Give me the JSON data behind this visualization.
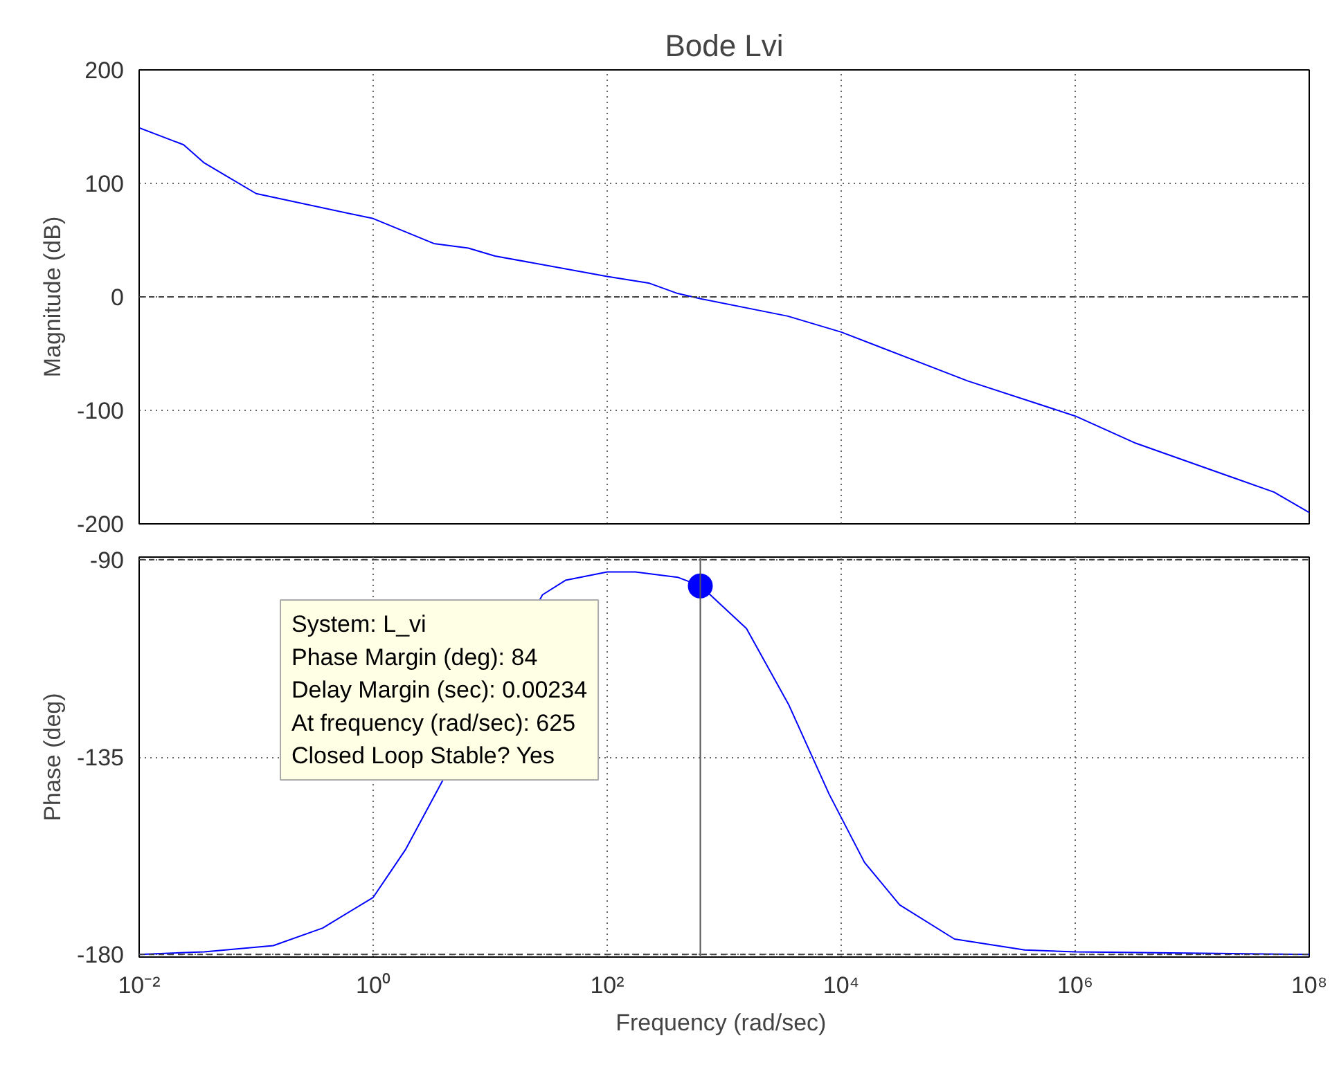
{
  "chart_data": [
    {
      "type": "line",
      "title": "Bode Lvi",
      "ylabel": "Magnitude (dB)",
      "log": "x",
      "grid": true,
      "tick_labels": "y",
      "xlim": [
        0.01,
        100000000
      ],
      "xticks": [
        {
          "value": 0.01,
          "label": null
        },
        {
          "value": 1,
          "label": null
        },
        {
          "value": 100,
          "label": null
        },
        {
          "value": 10000,
          "label": null
        },
        {
          "value": 1000000,
          "label": null
        },
        {
          "value": 100000000,
          "label": null
        }
      ],
      "ylim": [
        -200,
        200
      ],
      "yticks": [
        -200,
        -100,
        0,
        100,
        200
      ],
      "ref_lines": [
        {
          "axis": "y",
          "value": 0,
          "label": null,
          "line_style": "dashed",
          "color": "#404040"
        }
      ],
      "series": [
        {
          "color": "#0000ff",
          "x": [
            0.01,
            0.024,
            0.036,
            0.1,
            1,
            3.3,
            6.5,
            11,
            100,
            230,
            400,
            650,
            3500,
            10000,
            120000,
            1000000,
            3300000,
            50000000,
            100000000
          ],
          "values": [
            149,
            134,
            118,
            91,
            69,
            47,
            43,
            36,
            18,
            12,
            3,
            -2,
            -17,
            -31,
            -74,
            -105,
            -129,
            -172,
            -190
          ]
        }
      ]
    },
    {
      "type": "line",
      "xlabel": "Frequency  (rad/sec)",
      "ylabel": "Phase (deg)",
      "log": "x",
      "grid": true,
      "xlim": [
        0.01,
        100000000
      ],
      "xticks": [
        {
          "value": 0.01,
          "label": "10⁻²"
        },
        {
          "value": 1,
          "label": "10⁰"
        },
        {
          "value": 100,
          "label": "10²"
        },
        {
          "value": 10000,
          "label": "10⁴"
        },
        {
          "value": 1000000,
          "label": "10⁶"
        },
        {
          "value": 100000000,
          "label": "10⁸"
        }
      ],
      "ylim": [
        -180.6,
        -89.4
      ],
      "yticks": [
        -180,
        -135,
        -90
      ],
      "ref_lines": [
        {
          "axis": "y",
          "value": -180,
          "label": null,
          "line_style": "dashed",
          "color": "#404040"
        },
        {
          "axis": "y",
          "value": -90,
          "label": null,
          "line_style": "dashed",
          "color": "#404040"
        },
        {
          "axis": "x",
          "value": 625,
          "label": null,
          "line_style": "solid",
          "color": "#555555"
        }
      ],
      "annotations": [
        "System: L_vi\nPhase Margin (deg): 84\nDelay Margin (sec): 0.00234\nAt frequency (rad/sec): 625\nClosed Loop Stable? Yes"
      ],
      "series": [
        {
          "color": "#0000ff",
          "x": [
            0.01,
            0.036,
            0.14,
            0.37,
            1,
            1.9,
            28,
            44,
            100,
            174,
            400,
            630,
            1550,
            3550,
            7900,
            15800,
            31600,
            93000,
            370000,
            1000000,
            100000000
          ],
          "values": [
            -180,
            -179.4,
            -178,
            -174,
            -167,
            -156,
            -98,
            -94.7,
            -92.8,
            -92.8,
            -94,
            -96,
            -105.7,
            -123,
            -143.5,
            -159,
            -168.7,
            -176.5,
            -179,
            -179.4,
            -180
          ]
        },
        {
          "type": "scatter",
          "marker": "circle",
          "color": "#0000ff",
          "x": [
            625
          ],
          "values": [
            -96
          ]
        }
      ]
    }
  ]
}
